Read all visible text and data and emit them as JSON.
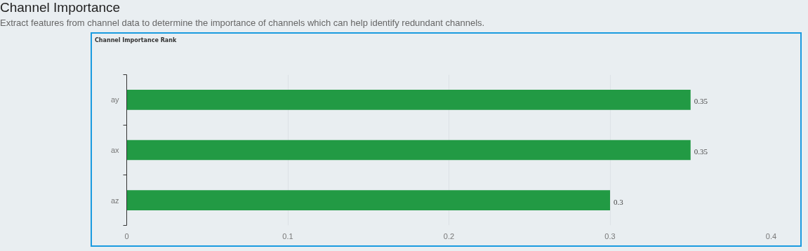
{
  "chart_data": {
    "type": "bar",
    "orientation": "horizontal",
    "title": "Channel Importance",
    "subtitle": "Extract features from channel data to determine the importance of channels which can help identify redundant channels.",
    "annotations": [
      "Channel Importance Rank"
    ],
    "categories": [
      "ay",
      "ax",
      "az"
    ],
    "values": [
      0.35,
      0.35,
      0.3
    ],
    "color": "#229a44",
    "xlim": [
      0,
      0.4
    ],
    "xticks": [
      0,
      0.1,
      0.2,
      0.3,
      0.4
    ],
    "grid": "x",
    "data_labels": true
  }
}
